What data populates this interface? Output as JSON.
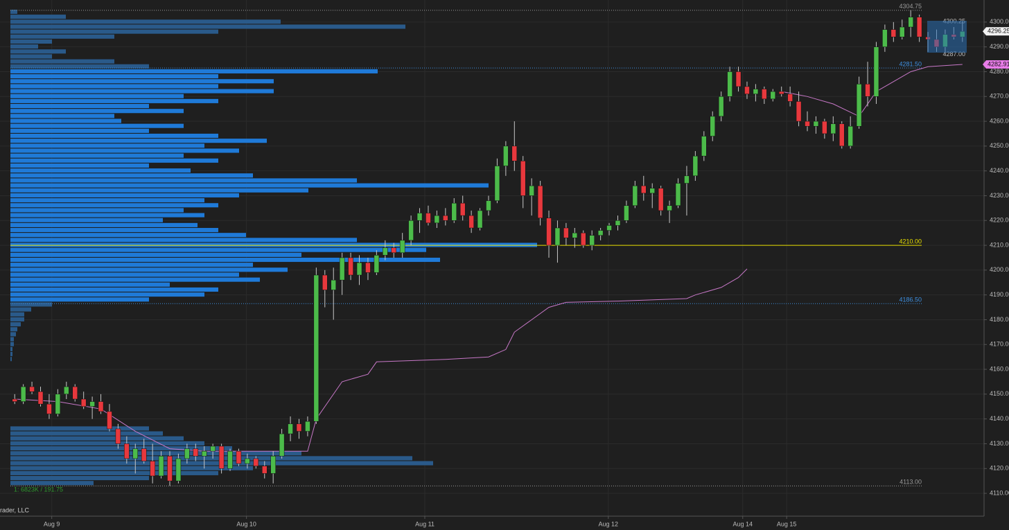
{
  "chart_data": {
    "type": "candlestick",
    "x": [
      0,
      1,
      2,
      3,
      4,
      5,
      6,
      7,
      8,
      9,
      10,
      11,
      12,
      13,
      14,
      15,
      16,
      17,
      18,
      19,
      20,
      21,
      22,
      23,
      24,
      25,
      26,
      27,
      28,
      29,
      30,
      31,
      32,
      33,
      34,
      35,
      36,
      37,
      38,
      39,
      40,
      41,
      42,
      43,
      44,
      45,
      46,
      47,
      48,
      49,
      50,
      51,
      52,
      53,
      54,
      55,
      56,
      57,
      58,
      59,
      60,
      61,
      62,
      63,
      64,
      65,
      66,
      67,
      68,
      69,
      70,
      71,
      72,
      73,
      74,
      75,
      76,
      77,
      78,
      79,
      80,
      81,
      82,
      83,
      84,
      85,
      86,
      87,
      88,
      89,
      90,
      91,
      92,
      93,
      94,
      95,
      96,
      97,
      98,
      99,
      100,
      101,
      102,
      103,
      104,
      105,
      106,
      107,
      108,
      109,
      110
    ],
    "open": [
      4148,
      4147,
      4153,
      4151,
      4146,
      4142,
      4150,
      4153,
      4148,
      4145,
      4147,
      4143,
      4136,
      4130,
      4124,
      4128,
      4123,
      4117,
      4125,
      4115,
      4124,
      4128,
      4125,
      4127,
      4129,
      4120,
      4127,
      4122,
      4124,
      4121,
      4118,
      4125,
      4134,
      4138,
      4135,
      4139,
      4198,
      4192,
      4196,
      4205,
      4198,
      4203,
      4199,
      4206,
      4209,
      4207,
      4212,
      4220,
      4223,
      4219,
      4222,
      4220,
      4227,
      4222,
      4217,
      4224,
      4228,
      4242,
      4250,
      4244,
      4230,
      4234,
      4221,
      4210,
      4217,
      4213,
      4215,
      4210,
      4214,
      4216,
      4218,
      4220,
      4226,
      4234,
      4231,
      4233,
      4224,
      4226,
      4235,
      4238,
      4246,
      4254,
      4262,
      4270,
      4280,
      4274,
      4271,
      4273,
      4269,
      4272,
      4271,
      4268,
      4260,
      4258,
      4260,
      4255,
      4259,
      4250,
      4258,
      4275,
      4270,
      4290,
      4297,
      4294,
      4298,
      4302,
      4294,
      4293,
      4290,
      4295,
      4294
    ],
    "high": [
      4150,
      4154,
      4155,
      4153,
      4150,
      4152,
      4155,
      4154,
      4151,
      4149,
      4150,
      4146,
      4138,
      4133,
      4130,
      4132,
      4130,
      4127,
      4127,
      4126,
      4130,
      4130,
      4129,
      4130,
      4130,
      4128,
      4128,
      4126,
      4125,
      4123,
      4127,
      4136,
      4141,
      4140,
      4141,
      4201,
      4200,
      4201,
      4207,
      4207,
      4206,
      4205,
      4208,
      4212,
      4211,
      4215,
      4222,
      4225,
      4226,
      4224,
      4225,
      4229,
      4230,
      4224,
      4225,
      4230,
      4245,
      4252,
      4260,
      4246,
      4237,
      4236,
      4224,
      4220,
      4219,
      4217,
      4216,
      4216,
      4217,
      4219,
      4222,
      4228,
      4236,
      4238,
      4235,
      4234,
      4228,
      4237,
      4242,
      4248,
      4256,
      4264,
      4272,
      4282,
      4282,
      4276,
      4275,
      4274,
      4273,
      4274,
      4274,
      4272,
      4264,
      4262,
      4261,
      4262,
      4260,
      4262,
      4278,
      4284,
      4292,
      4299,
      4300,
      4301,
      4304.75,
      4303,
      4296,
      4297,
      4297,
      4298,
      4300.25
    ],
    "low": [
      4146,
      4146,
      4150,
      4145,
      4140,
      4141,
      4148,
      4147,
      4144,
      4140,
      4142,
      4135,
      4128,
      4122,
      4118,
      4122,
      4114,
      4116,
      4113,
      4114,
      4122,
      4123,
      4120,
      4124,
      4118,
      4119,
      4121,
      4120,
      4120,
      4116,
      4114,
      4124,
      4131,
      4132,
      4133,
      4138,
      4185,
      4180,
      4190,
      4196,
      4194,
      4196,
      4198,
      4204,
      4205,
      4205,
      4210,
      4215,
      4218,
      4217,
      4218,
      4219,
      4220,
      4215,
      4216,
      4222,
      4227,
      4238,
      4240,
      4225,
      4222,
      4218,
      4205,
      4203,
      4210,
      4209,
      4209,
      4208,
      4212,
      4214,
      4216,
      4219,
      4225,
      4228,
      4225,
      4222,
      4219,
      4225,
      4222,
      4236,
      4244,
      4252,
      4260,
      4268,
      4272,
      4269,
      4268,
      4267,
      4268,
      4270,
      4266,
      4258,
      4256,
      4255,
      4253,
      4252,
      4249,
      4249,
      4257,
      4266,
      4267,
      4288,
      4292,
      4293,
      4294,
      4292,
      4288,
      4288,
      4287,
      4293,
      4292
    ],
    "close": [
      4147,
      4153,
      4151,
      4146,
      4142,
      4150,
      4153,
      4148,
      4145,
      4147,
      4143,
      4136,
      4130,
      4124,
      4128,
      4123,
      4117,
      4125,
      4115,
      4124,
      4128,
      4125,
      4127,
      4129,
      4120,
      4127,
      4122,
      4124,
      4121,
      4118,
      4125,
      4134,
      4138,
      4135,
      4139,
      4198,
      4192,
      4196,
      4205,
      4198,
      4203,
      4199,
      4206,
      4209,
      4207,
      4212,
      4220,
      4223,
      4219,
      4222,
      4220,
      4227,
      4222,
      4217,
      4224,
      4228,
      4242,
      4250,
      4244,
      4230,
      4234,
      4221,
      4210,
      4217,
      4213,
      4215,
      4210,
      4214,
      4216,
      4218,
      4220,
      4226,
      4234,
      4231,
      4233,
      4224,
      4226,
      4235,
      4238,
      4246,
      4254,
      4262,
      4270,
      4280,
      4274,
      4271,
      4273,
      4269,
      4272,
      4271,
      4268,
      4260,
      4258,
      4260,
      4255,
      4259,
      4250,
      4258,
      4275,
      4270,
      4290,
      4297,
      4294,
      4298,
      4302,
      4294,
      4293,
      4290,
      4295,
      4294,
      4296.25
    ],
    "up_color": "#4cbb4a",
    "down_color": "#e8383d",
    "wick_color": "#c8c8c8",
    "xlim": [
      -0.5,
      110.5
    ],
    "xticks": [
      {
        "value": 4.3,
        "label": "Aug 9"
      },
      {
        "value": 26.9,
        "label": "Aug 10"
      },
      {
        "value": 47.6,
        "label": "Aug 11"
      },
      {
        "value": 68.9,
        "label": "Aug 12"
      },
      {
        "value": 84.5,
        "label": "Aug 14"
      },
      {
        "value": 89.6,
        "label": "Aug 15"
      }
    ],
    "ylim": [
      4100.8,
      4308.9
    ],
    "yticks": [
      {
        "value": 4110,
        "label": "4110.00"
      },
      {
        "value": 4120,
        "label": "4120.00"
      },
      {
        "value": 4130,
        "label": "4130.00"
      },
      {
        "value": 4140,
        "label": "4140.00"
      },
      {
        "value": 4150,
        "label": "4150.00"
      },
      {
        "value": 4160,
        "label": "4160.00"
      },
      {
        "value": 4170,
        "label": "4170.00"
      },
      {
        "value": 4180,
        "label": "4180.00"
      },
      {
        "value": 4190,
        "label": "4190.00"
      },
      {
        "value": 4200,
        "label": "4200.00"
      },
      {
        "value": 4210,
        "label": "4210.00"
      },
      {
        "value": 4220,
        "label": "4220.00"
      },
      {
        "value": 4230,
        "label": "4230.00"
      },
      {
        "value": 4240,
        "label": "4240.00"
      },
      {
        "value": 4250,
        "label": "4250.00"
      },
      {
        "value": 4260,
        "label": "4260.00"
      },
      {
        "value": 4270,
        "label": "4270.00"
      },
      {
        "value": 4280,
        "label": "4280.00"
      },
      {
        "value": 4290,
        "label": "4290.00"
      },
      {
        "value": 4300,
        "label": "4300.00"
      }
    ],
    "grid": true,
    "levels": [
      {
        "value": 4304.75,
        "color": "#9a9a9a",
        "dash": true
      },
      {
        "value": 4281.5,
        "label": "4281.50",
        "color": "#3d8fe0",
        "dash": true,
        "value_area": true
      },
      {
        "value": 4210,
        "label": "4210.00",
        "color": "#e8e000",
        "dash": false
      },
      {
        "value": 4186.5,
        "label": "4186.50",
        "color": "#3d8fe0",
        "dash": true,
        "value_area": true
      },
      {
        "value": 4113,
        "label": "4113.00",
        "color": "#9a9a9a",
        "dash": true
      }
    ],
    "vwap": {
      "color": "#c878c8",
      "x": [
        0,
        5,
        10,
        14,
        18,
        22,
        34,
        35,
        38,
        41,
        42,
        50,
        55,
        57,
        58,
        60,
        62,
        64,
        70,
        78,
        79,
        82,
        84,
        85,
        86,
        89,
        92,
        95,
        98,
        100,
        102,
        104,
        106,
        110
      ],
      "values": [
        4148,
        4147,
        4144,
        4135,
        4128,
        4127,
        4127,
        4140,
        4155,
        4158,
        4163,
        4164,
        4165,
        4168,
        4175,
        4180,
        4185,
        4187,
        4187.5,
        4188.5,
        4190,
        4193,
        4197,
        4200.5,
        null,
        4272,
        4270,
        4267,
        4262,
        4272,
        4276,
        4280,
        4282,
        4282.91
      ]
    },
    "profiles": [
      {
        "color": "#2a5a8a",
        "value_area_color": "#1f7ad8",
        "prices": [
          4304,
          4302,
          4300,
          4298,
          4296,
          4294,
          4292,
          4290,
          4288,
          4286,
          4284,
          4282,
          4280,
          4278,
          4276,
          4274,
          4272,
          4270,
          4268,
          4266,
          4264,
          4262,
          4260,
          4258,
          4256,
          4254,
          4252,
          4250,
          4248,
          4246,
          4244,
          4242,
          4240,
          4238,
          4236,
          4234,
          4232,
          4230,
          4228,
          4226,
          4224,
          4222,
          4220,
          4218,
          4216,
          4214,
          4212,
          4210,
          4208,
          4206,
          4204,
          4202,
          4200,
          4198,
          4196,
          4194,
          4192,
          4190,
          4188,
          4186,
          4184,
          4182,
          4180,
          4178,
          4176,
          4174,
          4172,
          4170,
          4168,
          4166,
          4164
        ],
        "volumes": [
          10,
          80,
          390,
          570,
          300,
          150,
          60,
          40,
          80,
          60,
          150,
          200,
          530,
          300,
          380,
          300,
          380,
          250,
          300,
          200,
          250,
          150,
          160,
          250,
          200,
          300,
          370,
          280,
          330,
          250,
          300,
          200,
          260,
          350,
          500,
          690,
          430,
          330,
          280,
          300,
          250,
          280,
          220,
          270,
          300,
          340,
          500,
          760,
          600,
          420,
          620,
          350,
          400,
          330,
          360,
          230,
          300,
          280,
          200,
          60,
          30,
          20,
          20,
          15,
          10,
          8,
          5,
          5,
          3,
          3,
          2
        ]
      },
      {
        "color": "#2a5a8a",
        "prices": [
          4136,
          4134,
          4132,
          4130,
          4128,
          4126,
          4124,
          4122,
          4120,
          4118,
          4116,
          4114
        ],
        "volumes": [
          200,
          220,
          250,
          280,
          320,
          420,
          580,
          610,
          350,
          300,
          200,
          120
        ]
      }
    ],
    "tags": [
      {
        "value": 4296.25,
        "color": "#f2f2f2",
        "text_color": "#111111"
      },
      {
        "value": 4282.91,
        "color": "#e87ce8",
        "text_color": "#111111"
      }
    ],
    "mini_labels": [
      {
        "value": 4300.25
      },
      {
        "value": 4287,
        "label": "4287.00"
      }
    ],
    "stats": "1: 6823K / 191.75",
    "copyright": "rader, LLC"
  }
}
